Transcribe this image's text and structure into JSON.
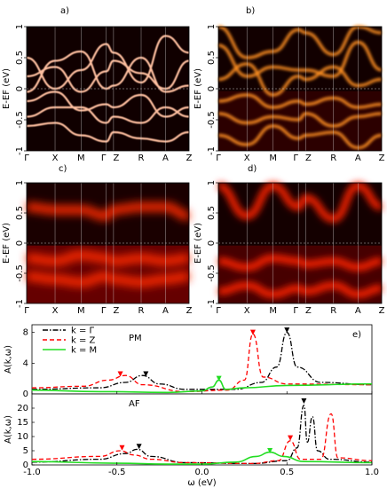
{
  "chart_data": [
    {
      "panel": "a)",
      "type": "heatmap",
      "ylabel": "E-E_F (eV)",
      "ylim": [
        -1,
        1
      ],
      "yticks": [
        "-1",
        "-0.5",
        "0",
        "0.5",
        "1"
      ],
      "kpoints": [
        "Γ",
        "X",
        "M",
        "Γ",
        "Z",
        "R",
        "A",
        "Z"
      ],
      "bands": [
        {
          "e": [
            0.5,
            0.0,
            0.3,
            0.72,
            0.58,
            0.1,
            0.85,
            0.58
          ]
        },
        {
          "e": [
            0.2,
            0.35,
            -0.05,
            0.28,
            0.45,
            0.25,
            0.0,
            0.45
          ]
        },
        {
          "e": [
            -0.05,
            0.45,
            0.6,
            0.0,
            0.05,
            0.5,
            -0.05,
            0.05
          ]
        },
        {
          "e": [
            -0.2,
            -0.05,
            -0.35,
            -0.25,
            -0.3,
            -0.1,
            -0.45,
            -0.3
          ]
        },
        {
          "e": [
            -0.45,
            -0.3,
            -0.3,
            -0.55,
            -0.45,
            -0.55,
            -0.3,
            -0.45
          ]
        },
        {
          "e": [
            -0.6,
            -0.55,
            -0.75,
            -0.85,
            -0.7,
            -0.8,
            -0.85,
            -0.7
          ]
        }
      ],
      "fermi_line": 0
    },
    {
      "panel": "b)",
      "type": "heatmap",
      "ylabel": "E-E_F (eV)",
      "ylim": [
        -1,
        1
      ],
      "yticks": [
        "-1",
        "-0.5",
        "0",
        "0.5",
        "1"
      ],
      "kpoints": [
        "Γ",
        "X",
        "M",
        "Γ",
        "Z",
        "R",
        "A",
        "Z"
      ],
      "bands": [
        {
          "e": [
            1.0,
            0.5,
            0.6,
            0.95,
            0.9,
            0.55,
            1.0,
            0.9
          ]
        },
        {
          "e": [
            0.7,
            0.2,
            0.35,
            0.3,
            0.3,
            0.2,
            0.75,
            0.3
          ]
        },
        {
          "e": [
            0.15,
            0.4,
            -0.1,
            0.2,
            0.15,
            0.35,
            0.05,
            0.15
          ]
        },
        {
          "e": [
            -0.2,
            -0.1,
            -0.3,
            -0.2,
            -0.25,
            -0.15,
            -0.3,
            -0.25
          ]
        },
        {
          "e": [
            -0.4,
            -0.55,
            -0.45,
            -0.5,
            -0.4,
            -0.6,
            -0.45,
            -0.4
          ]
        },
        {
          "e": [
            -0.75,
            -0.9,
            -0.6,
            -0.8,
            -0.75,
            -0.7,
            -0.95,
            -0.75
          ]
        }
      ],
      "fermi_line": 0
    },
    {
      "panel": "c)",
      "type": "heatmap",
      "ylabel": "E-E_F (eV)",
      "ylim": [
        -1,
        1
      ],
      "yticks": [
        "-1",
        "-0.5",
        "0",
        "0.5",
        "1"
      ],
      "kpoints": [
        "Γ",
        "X",
        "M",
        "Γ",
        "Z",
        "R",
        "A",
        "Z"
      ],
      "bands": [
        {
          "e": [
            0.6,
            0.55,
            0.55,
            0.45,
            0.55,
            0.6,
            0.6,
            0.45
          ]
        },
        {
          "e": [
            -0.25,
            -0.3,
            -0.2,
            -0.25,
            -0.3,
            -0.25,
            -0.3,
            -0.25
          ]
        },
        {
          "e": [
            -0.55,
            -0.6,
            -0.65,
            -0.55,
            -0.6,
            -0.65,
            -0.6,
            -0.55
          ]
        }
      ],
      "fermi_line": 0
    },
    {
      "panel": "d)",
      "type": "heatmap",
      "ylabel": "E-E_F (eV)",
      "ylim": [
        -1,
        1
      ],
      "yticks": [
        "-1",
        "-0.5",
        "0",
        "0.5",
        "1"
      ],
      "kpoints": [
        "Γ",
        "X",
        "M",
        "Γ",
        "Z",
        "R",
        "A",
        "Z"
      ],
      "bands": [
        {
          "e": [
            0.95,
            0.45,
            0.95,
            0.6,
            0.75,
            0.4,
            0.95,
            0.6
          ]
        },
        {
          "e": [
            -0.3,
            -0.4,
            -0.25,
            -0.3,
            -0.35,
            -0.3,
            -0.4,
            -0.3
          ]
        },
        {
          "e": [
            -0.8,
            -0.7,
            -0.85,
            -0.75,
            -0.8,
            -0.7,
            -0.85,
            -0.75
          ]
        }
      ],
      "fermi_line": 0
    },
    {
      "panel": "e)",
      "type": "line",
      "label": "PM",
      "ylabel": "A(k,ω)",
      "ylim": [
        0,
        9
      ],
      "yticks": [
        0,
        4,
        8
      ],
      "xlim": [
        -1.0,
        1.0
      ],
      "legend": "top-left",
      "series": [
        {
          "name": "k = Γ",
          "color": "#000000",
          "dash": "dashdot",
          "x": [
            -1.0,
            -0.6,
            -0.45,
            -0.35,
            -0.25,
            -0.1,
            0.2,
            0.35,
            0.44,
            0.5,
            0.56,
            0.7,
            1.0
          ],
          "y": [
            0.6,
            0.8,
            1.5,
            2.4,
            1.3,
            0.6,
            0.6,
            1.5,
            3.5,
            8.0,
            3.5,
            1.5,
            1.2
          ]
        },
        {
          "name": "k = Z",
          "color": "#ff0000",
          "dash": "dashed",
          "x": [
            -1.0,
            -0.7,
            -0.55,
            -0.45,
            -0.35,
            -0.1,
            0.15,
            0.25,
            0.3,
            0.36,
            0.5,
            1.0
          ],
          "y": [
            0.8,
            1.0,
            1.8,
            2.4,
            1.2,
            0.3,
            0.5,
            1.8,
            7.8,
            2.2,
            1.3,
            1.2
          ]
        },
        {
          "name": "k = M",
          "color": "#22dd22",
          "dash": "solid",
          "x": [
            -1.0,
            -0.6,
            -0.2,
            0.0,
            0.06,
            0.1,
            0.14,
            0.25,
            0.5,
            1.0
          ],
          "y": [
            0.5,
            0.3,
            0.2,
            0.4,
            0.9,
            1.8,
            0.6,
            0.8,
            1.1,
            1.3
          ]
        }
      ],
      "markers": [
        {
          "x": -0.48,
          "y": 2.6,
          "color": "#ff0000"
        },
        {
          "x": -0.33,
          "y": 2.6,
          "color": "#000000"
        },
        {
          "x": 0.1,
          "y": 2.0,
          "color": "#22dd22"
        },
        {
          "x": 0.3,
          "y": 8.0,
          "color": "#ff0000"
        },
        {
          "x": 0.5,
          "y": 8.3,
          "color": "#000000"
        }
      ]
    },
    {
      "panel": "e)",
      "type": "line",
      "label": "AF",
      "ylabel": "A(k,ω)",
      "ylim": [
        0,
        25
      ],
      "yticks": [
        0,
        5,
        10,
        15,
        20
      ],
      "xlim": [
        -1.0,
        1.0
      ],
      "xlabel": "ω (eV)",
      "xticks": [
        "-1.0",
        "-0.5",
        "0.0",
        "0.5",
        "1.0"
      ],
      "series": [
        {
          "name": "k = Γ",
          "color": "#000000",
          "dash": "dashdot",
          "x": [
            -1.0,
            -0.6,
            -0.45,
            -0.38,
            -0.3,
            -0.1,
            0.3,
            0.5,
            0.56,
            0.6,
            0.62,
            0.65,
            0.68,
            0.75,
            1.0
          ],
          "y": [
            1.0,
            2.0,
            4.0,
            5.5,
            3.0,
            0.8,
            0.5,
            1.5,
            6.0,
            21.0,
            8.0,
            17.0,
            5.0,
            2.0,
            1.0
          ]
        },
        {
          "name": "k = Z",
          "color": "#ff0000",
          "dash": "dashed",
          "x": [
            -1.0,
            -0.6,
            -0.48,
            -0.4,
            -0.3,
            -0.1,
            0.3,
            0.45,
            0.52,
            0.58,
            0.7,
            0.76,
            0.8,
            1.0
          ],
          "y": [
            2.0,
            3.0,
            5.0,
            3.5,
            2.0,
            0.8,
            0.5,
            1.5,
            8.5,
            2.0,
            2.0,
            18.0,
            2.5,
            1.5
          ]
        },
        {
          "name": "k = M",
          "color": "#22dd22",
          "dash": "solid",
          "x": [
            -1.0,
            -0.5,
            -0.2,
            0.0,
            0.2,
            0.32,
            0.4,
            0.48,
            0.6,
            1.0
          ],
          "y": [
            1.2,
            0.6,
            0.3,
            0.3,
            1.0,
            3.0,
            4.5,
            3.0,
            1.2,
            0.8
          ]
        }
      ],
      "markers": [
        {
          "x": -0.47,
          "y": 6.0,
          "color": "#ff0000"
        },
        {
          "x": -0.37,
          "y": 6.5,
          "color": "#000000"
        },
        {
          "x": 0.4,
          "y": 5.0,
          "color": "#22dd22"
        },
        {
          "x": 0.52,
          "y": 9.5,
          "color": "#ff0000"
        },
        {
          "x": 0.6,
          "y": 22.5,
          "color": "#000000"
        }
      ]
    }
  ]
}
